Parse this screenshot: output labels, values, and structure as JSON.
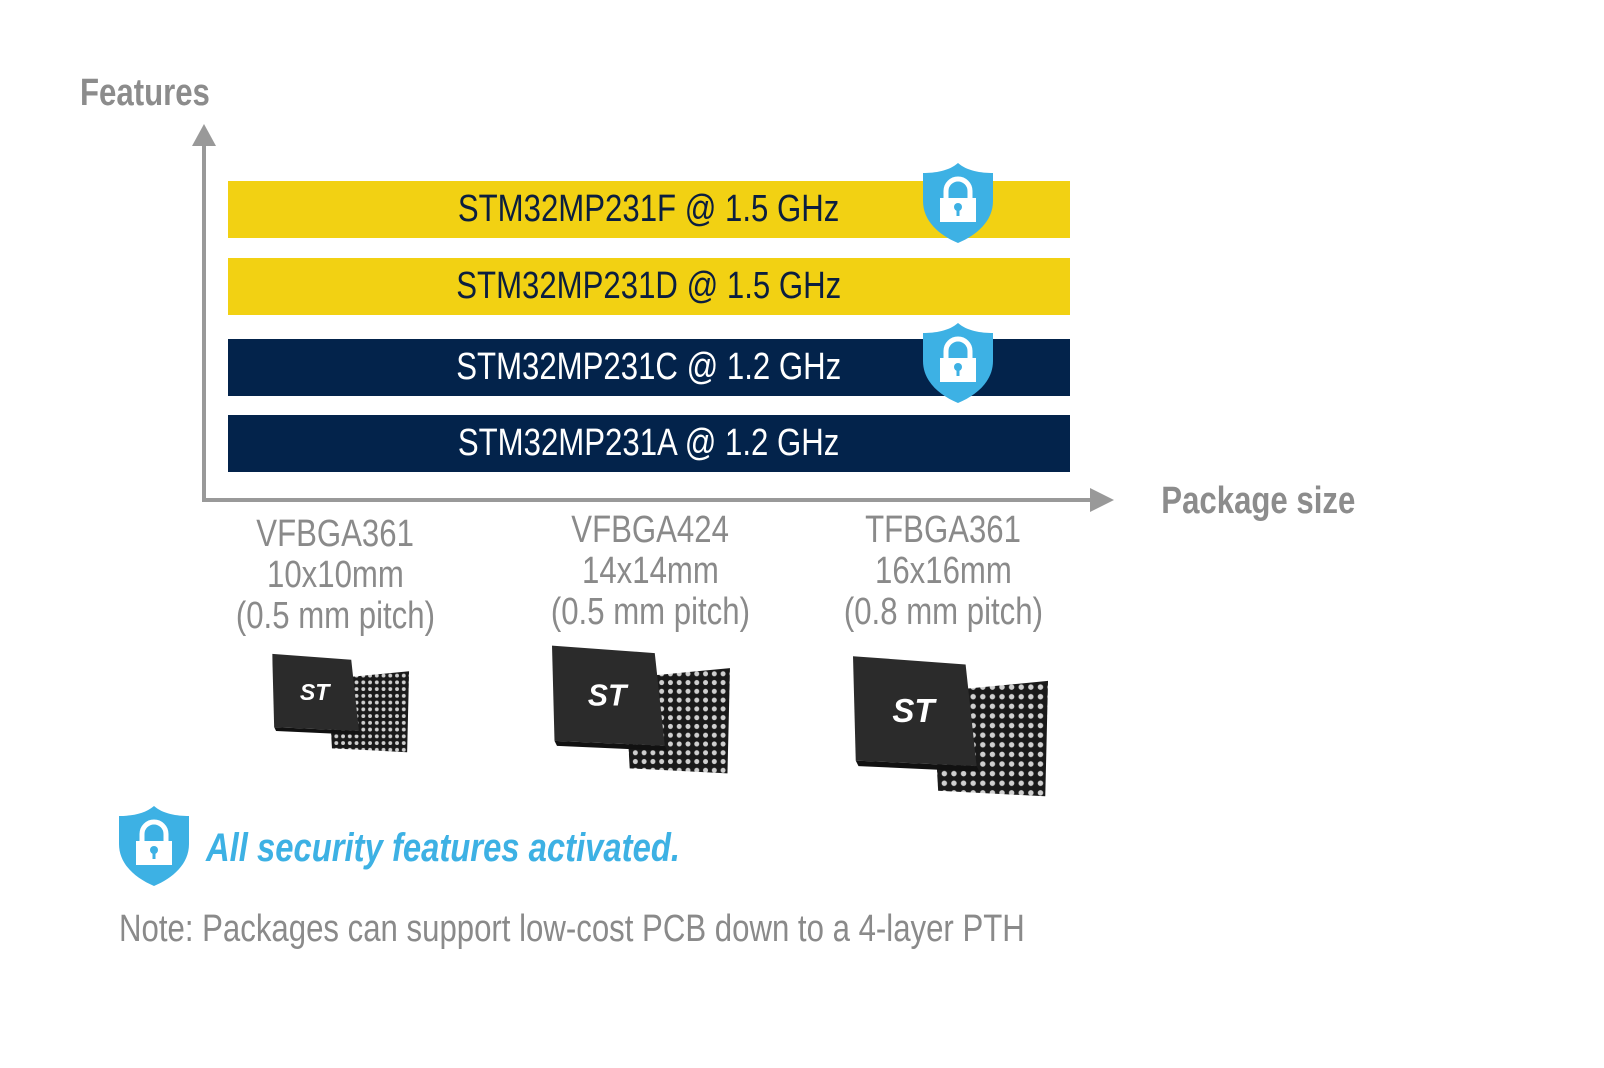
{
  "axes": {
    "y_label": "Features",
    "x_label": "Package size",
    "color": "#999999"
  },
  "bars": [
    {
      "label": "STM32MP231F @ 1.5 GHz",
      "color": "#f2d113",
      "secure": true
    },
    {
      "label": "STM32MP231D @ 1.5 GHz",
      "color": "#f2d113",
      "secure": false
    },
    {
      "label": "STM32MP231C @ 1.2 GHz",
      "color": "#03234b",
      "secure": true
    },
    {
      "label": "STM32MP231A @ 1.2 GHz",
      "color": "#03234b",
      "secure": false
    }
  ],
  "packages": [
    {
      "name": "VFBGA361",
      "size": "10x10mm",
      "pitch": "(0.5 mm pitch)",
      "logo": "ST"
    },
    {
      "name": "VFBGA424",
      "size": "14x14mm",
      "pitch": "(0.5 mm pitch)",
      "logo": "ST"
    },
    {
      "name": "TFBGA361",
      "size": "16x16mm",
      "pitch": "(0.8 mm pitch)",
      "logo": "ST"
    }
  ],
  "legend": {
    "icon": "shield-lock-icon",
    "text": "All security features activated.",
    "color": "#3db1e4"
  },
  "note": "Note: Packages can support low-cost PCB down to a 4-layer PTH"
}
